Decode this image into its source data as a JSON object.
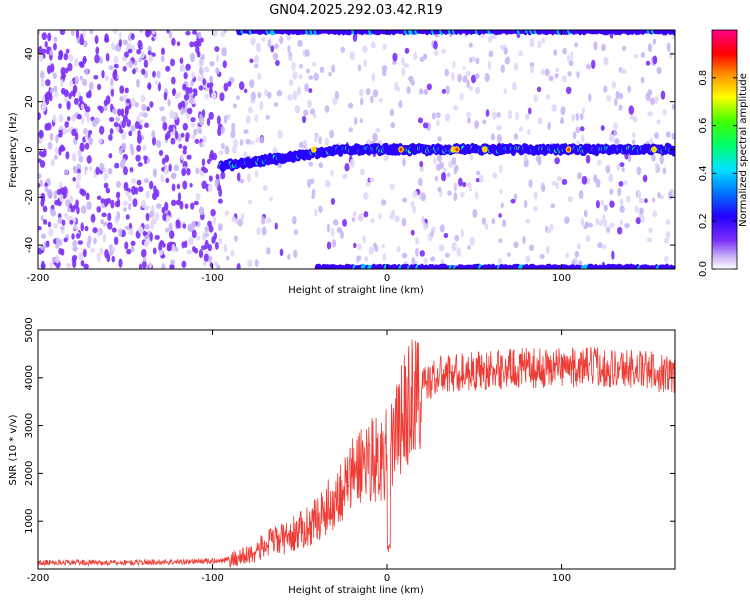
{
  "title": "GN04.2025.292.03.42.R19",
  "colors": {
    "line": "#f03a34",
    "track": "#3a00ff",
    "noise": "#7b2ff7",
    "axis": "#000000"
  },
  "chart_data": [
    {
      "type": "heatmap",
      "xlabel": "Height of straight line (km)",
      "ylabel": "Frequency (Hz)",
      "xlim": [
        -200,
        165
      ],
      "ylim": [
        -50,
        50
      ],
      "xticks": [
        -200,
        -100,
        0,
        100
      ],
      "yticks": [
        -40,
        -20,
        0,
        20,
        40
      ],
      "colorbar": {
        "label": "Normalized spectral amplitude",
        "range": [
          0,
          1
        ],
        "ticks": [
          "0.0",
          "0.2",
          "0.4",
          "0.6",
          "0.8"
        ],
        "colormap": "rainbow (white-violet-blue-cyan-green-yellow-red-magenta)"
      },
      "features": [
        {
          "name": "carrier",
          "x": [
            -95,
            165
          ],
          "y_at_start": -7,
          "y_at_end": 0,
          "peak_amplitude": 0.9
        },
        {
          "name": "upper alias",
          "x": [
            -85,
            165
          ],
          "y": 50
        },
        {
          "name": "lower alias",
          "x": [
            -40,
            165
          ],
          "y": -50
        }
      ]
    },
    {
      "type": "line",
      "xlabel": "Height of straight line (km)",
      "ylabel": "SNR (10 * v/v)",
      "xlim": [
        -200,
        165
      ],
      "ylim": [
        0,
        5000
      ],
      "xticks": [
        -200,
        -100,
        0,
        100
      ],
      "yticks": [
        1000,
        2000,
        3000,
        4000,
        5000
      ],
      "series": [
        {
          "x": [
            -200,
            -180,
            -160,
            -140,
            -120,
            -100,
            -90,
            -80,
            -75,
            -70,
            -65,
            -60,
            -55,
            -50,
            -45,
            -40,
            -35,
            -30,
            -25,
            -20,
            -15,
            -10,
            -5,
            0,
            5,
            10,
            15,
            20,
            25,
            30,
            40,
            50,
            60,
            70,
            80,
            90,
            100,
            110,
            120,
            130,
            140,
            150,
            160,
            165
          ],
          "y": [
            130,
            140,
            130,
            140,
            150,
            170,
            200,
            280,
            380,
            480,
            600,
            620,
            700,
            800,
            900,
            1050,
            1250,
            1450,
            1700,
            1950,
            2200,
            2350,
            2300,
            2400,
            2800,
            3300,
            3600,
            3800,
            3950,
            4050,
            4100,
            4150,
            4150,
            4200,
            4200,
            4200,
            4250,
            4200,
            4250,
            4200,
            4200,
            4150,
            4100,
            4050
          ]
        }
      ]
    }
  ]
}
